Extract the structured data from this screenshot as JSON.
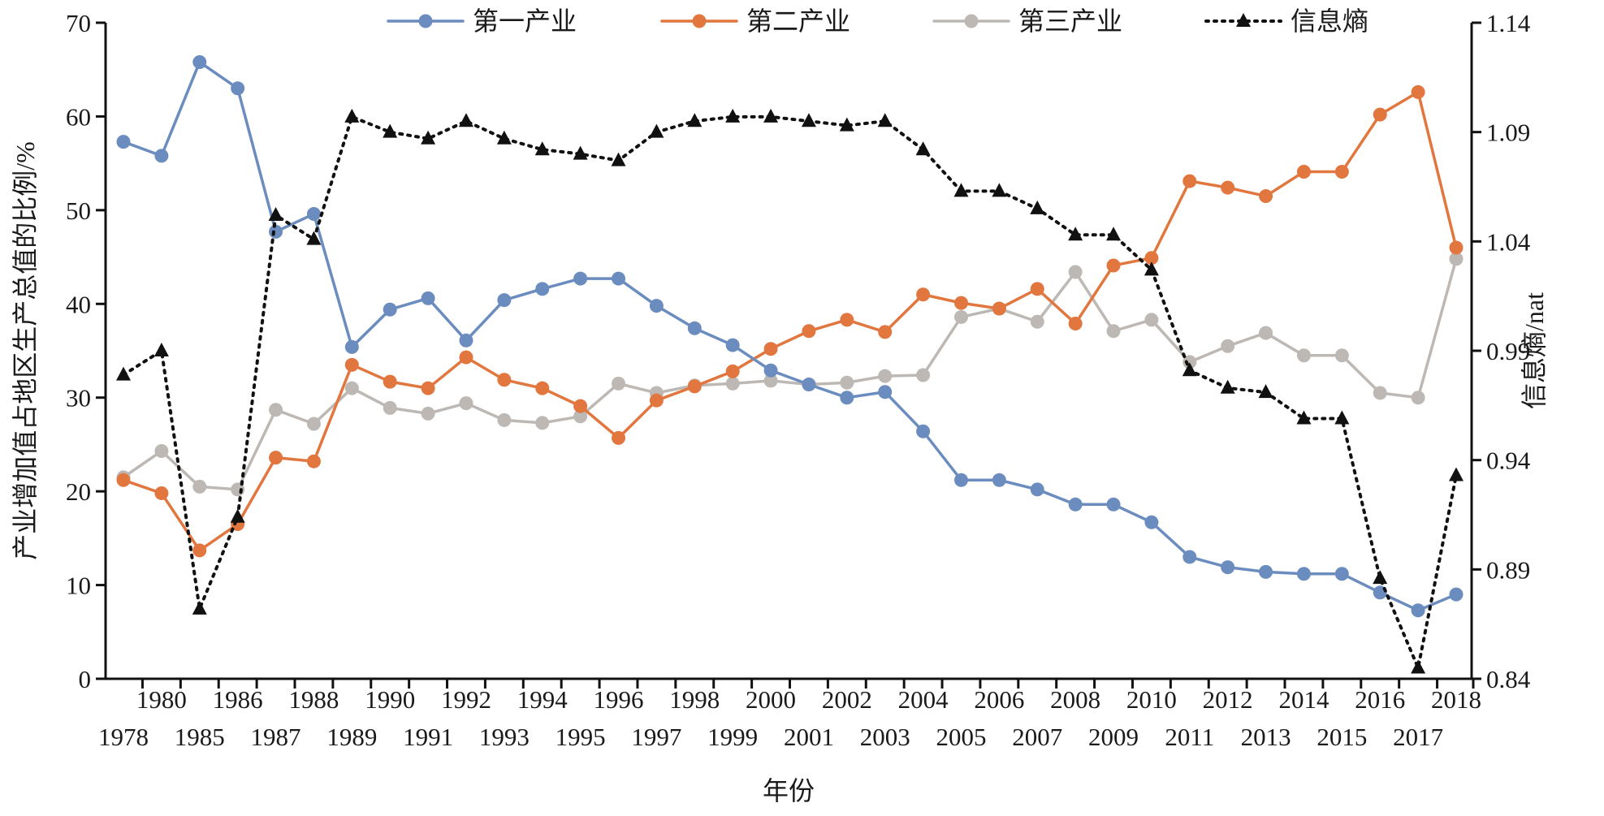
{
  "chart_data": {
    "type": "line",
    "title": "",
    "xlabel": "年份",
    "ylabel": "产业增加值占地区生产总值的比例/%",
    "y2label": "信息熵/nat",
    "ylim": [
      0,
      70
    ],
    "yticks": [
      0,
      10,
      20,
      30,
      40,
      50,
      60,
      70
    ],
    "y2lim": [
      0.84,
      1.14
    ],
    "y2ticks": [
      "0.84",
      "0.89",
      "0.94",
      "0.99",
      "1.04",
      "1.09",
      "1.14"
    ],
    "grid": false,
    "legend_position": "top",
    "categories": [
      "1978",
      "1980",
      "1985",
      "1986",
      "1987",
      "1988",
      "1989",
      "1990",
      "1991",
      "1992",
      "1993",
      "1994",
      "1995",
      "1996",
      "1997",
      "1998",
      "1999",
      "2000",
      "2001",
      "2002",
      "2003",
      "2004",
      "2005",
      "2006",
      "2007",
      "2008",
      "2009",
      "2010",
      "2011",
      "2012",
      "2013",
      "2014",
      "2015",
      "2016",
      "2017",
      "2018"
    ],
    "series": [
      {
        "name": "第一产业",
        "axis": "left",
        "color": "#6b8cbe",
        "marker": "circle",
        "style": "solid",
        "values": [
          57.3,
          55.8,
          65.8,
          63.0,
          47.7,
          49.6,
          35.4,
          39.4,
          40.6,
          36.1,
          40.4,
          41.6,
          42.7,
          42.7,
          39.8,
          37.4,
          35.6,
          32.9,
          31.4,
          30.0,
          30.6,
          26.4,
          21.2,
          21.2,
          20.2,
          18.6,
          18.6,
          16.7,
          13.0,
          11.9,
          11.4,
          11.2,
          11.2,
          9.2,
          7.3,
          9.0
        ]
      },
      {
        "name": "第二产业",
        "axis": "left",
        "color": "#e2763f",
        "marker": "circle",
        "style": "solid",
        "values": [
          21.2,
          19.8,
          13.7,
          16.5,
          23.6,
          23.2,
          33.5,
          31.7,
          31.0,
          34.3,
          31.9,
          31.0,
          29.1,
          25.7,
          29.7,
          31.2,
          32.8,
          35.2,
          37.1,
          38.3,
          37.0,
          41.0,
          40.1,
          39.5,
          41.6,
          37.9,
          44.1,
          44.9,
          53.1,
          52.4,
          51.5,
          54.1,
          54.1,
          60.2,
          62.6,
          46.0
        ]
      },
      {
        "name": "第三产业",
        "axis": "left",
        "color": "#bdb8b3",
        "marker": "circle",
        "style": "solid",
        "values": [
          21.5,
          24.3,
          20.5,
          20.2,
          28.7,
          27.2,
          31.0,
          28.9,
          28.3,
          29.4,
          27.6,
          27.3,
          28.0,
          31.5,
          30.5,
          31.3,
          31.5,
          31.8,
          31.4,
          31.6,
          32.3,
          32.4,
          38.6,
          39.5,
          38.1,
          43.4,
          37.1,
          38.3,
          33.8,
          35.5,
          36.9,
          34.5,
          34.5,
          30.5,
          30.0,
          44.8
        ]
      },
      {
        "name": "信息熵",
        "axis": "right",
        "color": "#111111",
        "marker": "triangle",
        "style": "dotted",
        "values": [
          0.979,
          0.99,
          0.872,
          0.914,
          1.052,
          1.041,
          1.097,
          1.09,
          1.087,
          1.095,
          1.087,
          1.082,
          1.08,
          1.077,
          1.09,
          1.095,
          1.097,
          1.097,
          1.095,
          1.093,
          1.095,
          1.082,
          1.063,
          1.063,
          1.055,
          1.043,
          1.043,
          1.027,
          0.981,
          0.973,
          0.971,
          0.959,
          0.959,
          0.886,
          0.845,
          0.933
        ]
      }
    ]
  }
}
